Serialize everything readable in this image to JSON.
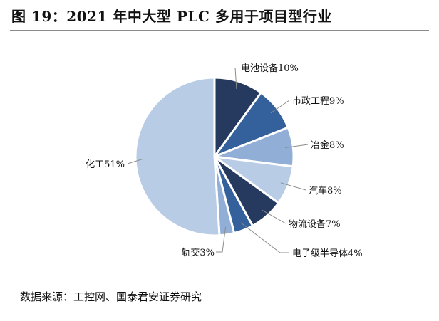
{
  "figure": {
    "title": "图 19：2021 年中大型 PLC 多用于项目型行业",
    "source": "数据来源：工控网、国泰君安证券研究"
  },
  "chart_data": {
    "type": "pie",
    "title": "2021 年中大型 PLC 多用于项目型行业",
    "slices": [
      {
        "name": "电池设备",
        "value": 10,
        "label": "电池设备10%",
        "color": "#253a5e"
      },
      {
        "name": "市政工程",
        "value": 9,
        "label": "市政工程9%",
        "color": "#34609b"
      },
      {
        "name": "冶金",
        "value": 8,
        "label": "冶金8%",
        "color": "#90aed6"
      },
      {
        "name": "汽车",
        "value": 8,
        "label": "汽车8%",
        "color": "#b8cce6"
      },
      {
        "name": "物流设备",
        "value": 7,
        "label": "物流设备7%",
        "color": "#253a5e"
      },
      {
        "name": "电子级半导体",
        "value": 4,
        "label": "电子级半导体4%",
        "color": "#34609b"
      },
      {
        "name": "轨交",
        "value": 3,
        "label": "轨交3%",
        "color": "#90aed6"
      },
      {
        "name": "化工",
        "value": 51,
        "label": "化工51%",
        "color": "#b8cce6"
      }
    ],
    "start_angle_deg": 0,
    "direction": "clockwise",
    "leader_color": "#8c8c8c"
  }
}
